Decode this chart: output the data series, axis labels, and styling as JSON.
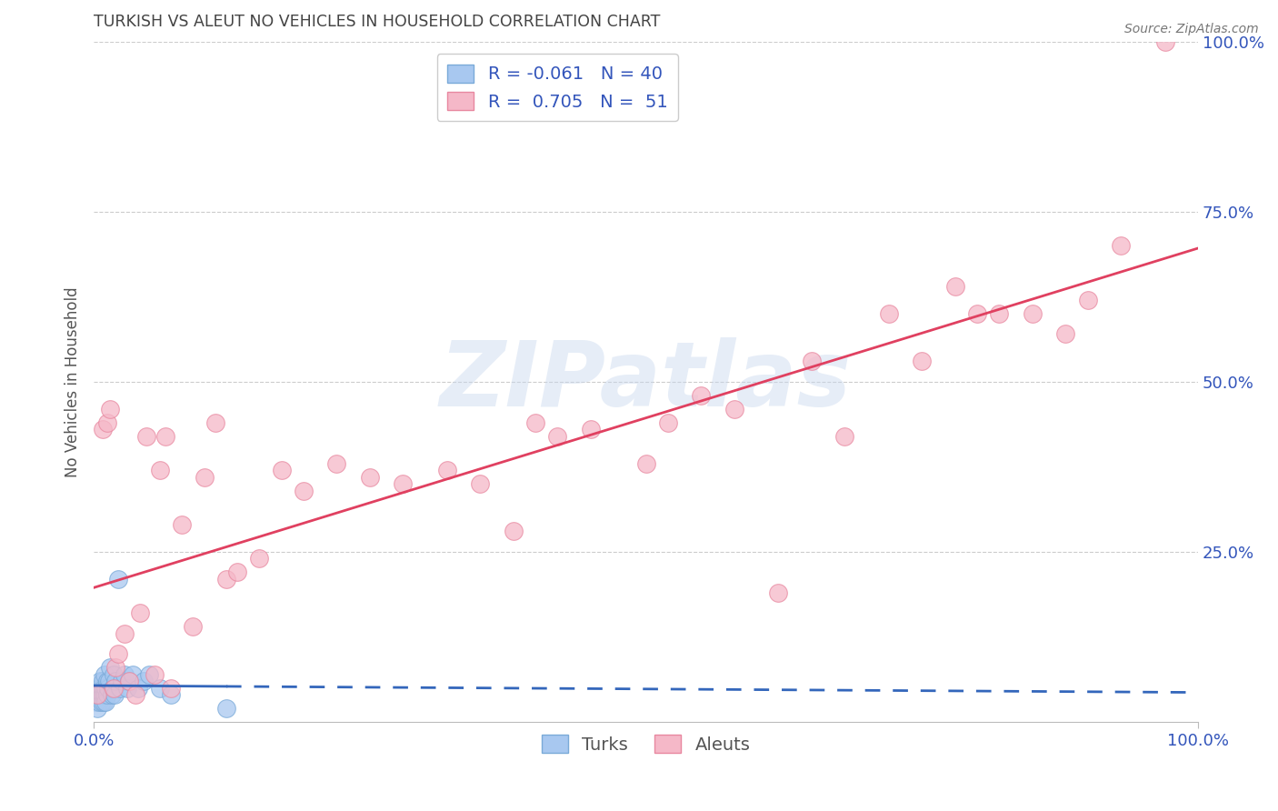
{
  "title": "TURKISH VS ALEUT NO VEHICLES IN HOUSEHOLD CORRELATION CHART",
  "source": "Source: ZipAtlas.com",
  "ylabel": "No Vehicles in Household",
  "xlim": [
    0,
    1.0
  ],
  "ylim": [
    0,
    1.0
  ],
  "xtick_positions": [
    0.0,
    1.0
  ],
  "xtick_labels": [
    "0.0%",
    "100.0%"
  ],
  "ytick_positions": [
    0.25,
    0.5,
    0.75,
    1.0
  ],
  "ytick_labels": [
    "25.0%",
    "50.0%",
    "75.0%",
    "100.0%"
  ],
  "grid_color": "#cccccc",
  "background_color": "#ffffff",
  "watermark_text": "ZIPatlas",
  "legend_turks": "R = -0.061   N = 40",
  "legend_aleuts": "R =  0.705   N =  51",
  "turks_color": "#a8c8f0",
  "turks_edge_color": "#7aaad8",
  "aleuts_color": "#f5b8c8",
  "aleuts_edge_color": "#e888a0",
  "turks_line_color": "#3366bb",
  "aleuts_line_color": "#e04060",
  "title_color": "#444444",
  "axis_label_color": "#555555",
  "tick_color": "#3355bb",
  "source_color": "#777777",
  "turks_x": [
    0.002,
    0.003,
    0.004,
    0.005,
    0.005,
    0.006,
    0.006,
    0.007,
    0.007,
    0.008,
    0.008,
    0.009,
    0.009,
    0.01,
    0.01,
    0.011,
    0.011,
    0.012,
    0.012,
    0.013,
    0.014,
    0.015,
    0.016,
    0.017,
    0.018,
    0.019,
    0.02,
    0.022,
    0.024,
    0.025,
    0.028,
    0.03,
    0.032,
    0.035,
    0.04,
    0.045,
    0.05,
    0.06,
    0.07,
    0.12
  ],
  "turks_y": [
    0.03,
    0.02,
    0.04,
    0.05,
    0.03,
    0.06,
    0.04,
    0.05,
    0.03,
    0.06,
    0.04,
    0.05,
    0.03,
    0.07,
    0.04,
    0.05,
    0.03,
    0.06,
    0.04,
    0.05,
    0.06,
    0.08,
    0.04,
    0.05,
    0.07,
    0.04,
    0.06,
    0.21,
    0.05,
    0.06,
    0.07,
    0.05,
    0.06,
    0.07,
    0.05,
    0.06,
    0.07,
    0.05,
    0.04,
    0.02
  ],
  "aleuts_x": [
    0.003,
    0.008,
    0.012,
    0.015,
    0.018,
    0.02,
    0.022,
    0.028,
    0.032,
    0.038,
    0.042,
    0.048,
    0.055,
    0.06,
    0.065,
    0.07,
    0.08,
    0.09,
    0.1,
    0.11,
    0.12,
    0.13,
    0.15,
    0.17,
    0.19,
    0.22,
    0.25,
    0.28,
    0.32,
    0.35,
    0.38,
    0.4,
    0.42,
    0.45,
    0.5,
    0.52,
    0.55,
    0.58,
    0.62,
    0.65,
    0.68,
    0.72,
    0.75,
    0.78,
    0.8,
    0.82,
    0.85,
    0.88,
    0.9,
    0.93,
    0.97
  ],
  "aleuts_y": [
    0.04,
    0.43,
    0.44,
    0.46,
    0.05,
    0.08,
    0.1,
    0.13,
    0.06,
    0.04,
    0.16,
    0.42,
    0.07,
    0.37,
    0.42,
    0.05,
    0.29,
    0.14,
    0.36,
    0.44,
    0.21,
    0.22,
    0.24,
    0.37,
    0.34,
    0.38,
    0.36,
    0.35,
    0.37,
    0.35,
    0.28,
    0.44,
    0.42,
    0.43,
    0.38,
    0.44,
    0.48,
    0.46,
    0.19,
    0.53,
    0.42,
    0.6,
    0.53,
    0.64,
    0.6,
    0.6,
    0.6,
    0.57,
    0.62,
    0.7,
    1.0
  ]
}
